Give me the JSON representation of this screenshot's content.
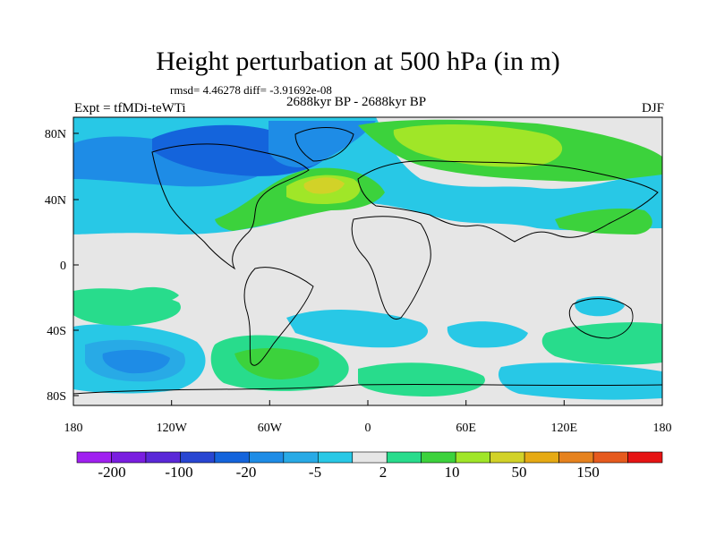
{
  "title": "Height perturbation at 500 hPa (in m)",
  "stats": "rmsd= 4.46278 diff= -3.91692e-08",
  "left_label": "Expt = tfMDi-teWTi",
  "center_label": "2688kyr BP - 2688kyr BP",
  "right_label": "DJF",
  "lat_ticks": [
    "80N",
    "40N",
    "0",
    "40S",
    "80S"
  ],
  "lon_ticks": [
    "180",
    "120W",
    "60W",
    "0",
    "60E",
    "120E",
    "180"
  ],
  "colorbar": {
    "labels": [
      "-200",
      "-100",
      "-20",
      "-5",
      "2",
      "10",
      "50",
      "150"
    ],
    "colors": [
      "#a020f0",
      "#7a1ee0",
      "#5a28d8",
      "#2846d2",
      "#1464dc",
      "#1e8ce6",
      "#28aae6",
      "#28c8e6",
      "#e6e6e6",
      "#28dc8c",
      "#3cd23c",
      "#a0e628",
      "#d2d228",
      "#e6aa14",
      "#e6821e",
      "#e65a1e",
      "#e61414"
    ]
  },
  "map_colors": {
    "background": "#e6e6e6",
    "deep_blue": "#1464dc",
    "mid_blue": "#1e8ce6",
    "light_blue": "#28aae6",
    "cyan": "#28c8e6",
    "mint": "#28dc8c",
    "green": "#3cd23c",
    "lime": "#a0e628",
    "yellow": "#d2d228",
    "orange": "#e6aa14"
  }
}
